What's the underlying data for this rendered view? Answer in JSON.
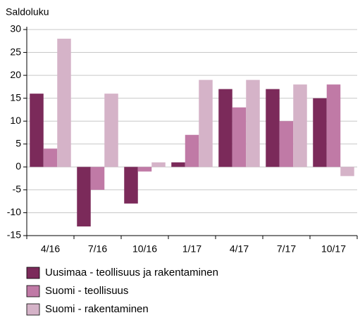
{
  "chart_data": {
    "type": "bar",
    "y_label": "Saldoluku",
    "categories": [
      "4/16",
      "7/16",
      "10/16",
      "1/17",
      "4/17",
      "7/17",
      "10/17"
    ],
    "series": [
      {
        "name": "Uusimaa - teollisuus ja rakentaminen",
        "color": "#7b2a5a",
        "values": [
          16,
          -13,
          -8,
          1,
          17,
          17,
          15
        ]
      },
      {
        "name": "Suomi - teollisuus",
        "color": "#c07aa6",
        "values": [
          4,
          -5,
          -1,
          7,
          13,
          10,
          18
        ]
      },
      {
        "name": "Suomi - rakentaminen",
        "color": "#d5b3c8",
        "values": [
          28,
          16,
          1,
          19,
          19,
          18,
          -2
        ]
      }
    ],
    "ylim": [
      -15,
      30
    ],
    "yticks": [
      -15,
      -10,
      -5,
      0,
      5,
      10,
      15,
      20,
      25,
      30
    ],
    "grid": true
  }
}
